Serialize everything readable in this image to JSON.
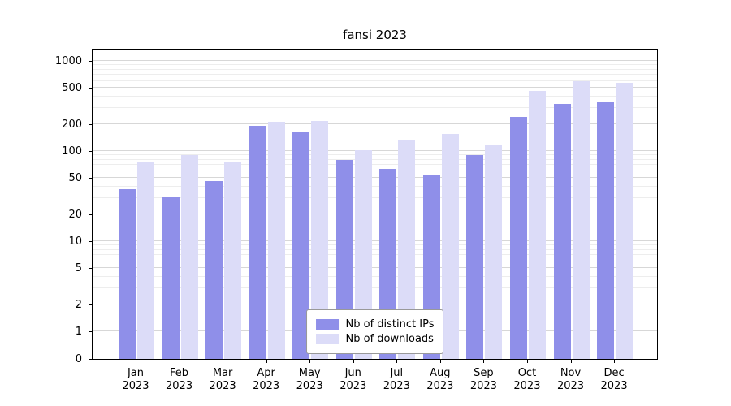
{
  "chart_data": {
    "type": "bar",
    "title": "fansi 2023",
    "scale": "symlog",
    "grid": true,
    "legend_position": "inside-bottom-center",
    "categories": [
      "Jan 2023",
      "Feb 2023",
      "Mar 2023",
      "Apr 2023",
      "May 2023",
      "Jun 2023",
      "Jul 2023",
      "Aug 2023",
      "Sep 2023",
      "Oct 2023",
      "Nov 2023",
      "Dec 2023"
    ],
    "x_tick_months": [
      "Jan",
      "Feb",
      "Mar",
      "Apr",
      "May",
      "Jun",
      "Jul",
      "Aug",
      "Sep",
      "Oct",
      "Nov",
      "Dec"
    ],
    "x_tick_year": "2023",
    "y_ticks": [
      0,
      1,
      2,
      5,
      10,
      20,
      50,
      100,
      200,
      500,
      1000
    ],
    "ylim": [
      0,
      1000
    ],
    "series": [
      {
        "name": "Nb of distinct IPs",
        "color": "#8f8fe9",
        "values": [
          38,
          31,
          46,
          190,
          165,
          80,
          63,
          54,
          90,
          240,
          330,
          350
        ]
      },
      {
        "name": "Nb of downloads",
        "color": "#dcdcf8",
        "values": [
          75,
          90,
          75,
          210,
          215,
          103,
          135,
          155,
          115,
          460,
          590,
          570
        ]
      }
    ],
    "colors": {
      "grid_major": "#d7d7d7",
      "grid_minor": "#ededed",
      "axis": "#000000"
    }
  }
}
